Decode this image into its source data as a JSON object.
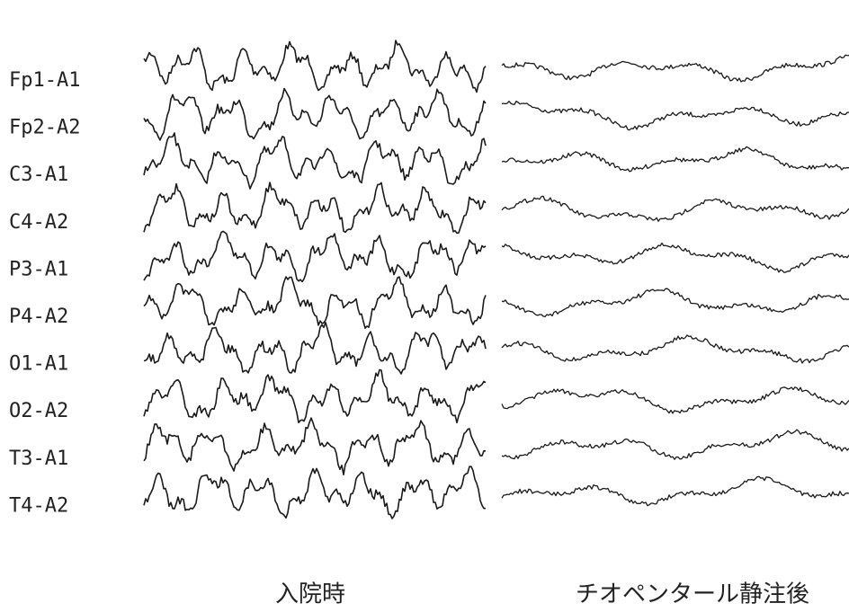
{
  "channels": [
    "Fp1-A1",
    "Fp2-A2",
    "C3-A1",
    "C4-A2",
    "P3-A1",
    "P4-A2",
    "O1-A1",
    "O2-A2",
    "T3-A1",
    "T4-A2"
  ],
  "panels": [
    {
      "label": "入院時"
    },
    {
      "label": "チオペンタール静注後"
    }
  ]
}
